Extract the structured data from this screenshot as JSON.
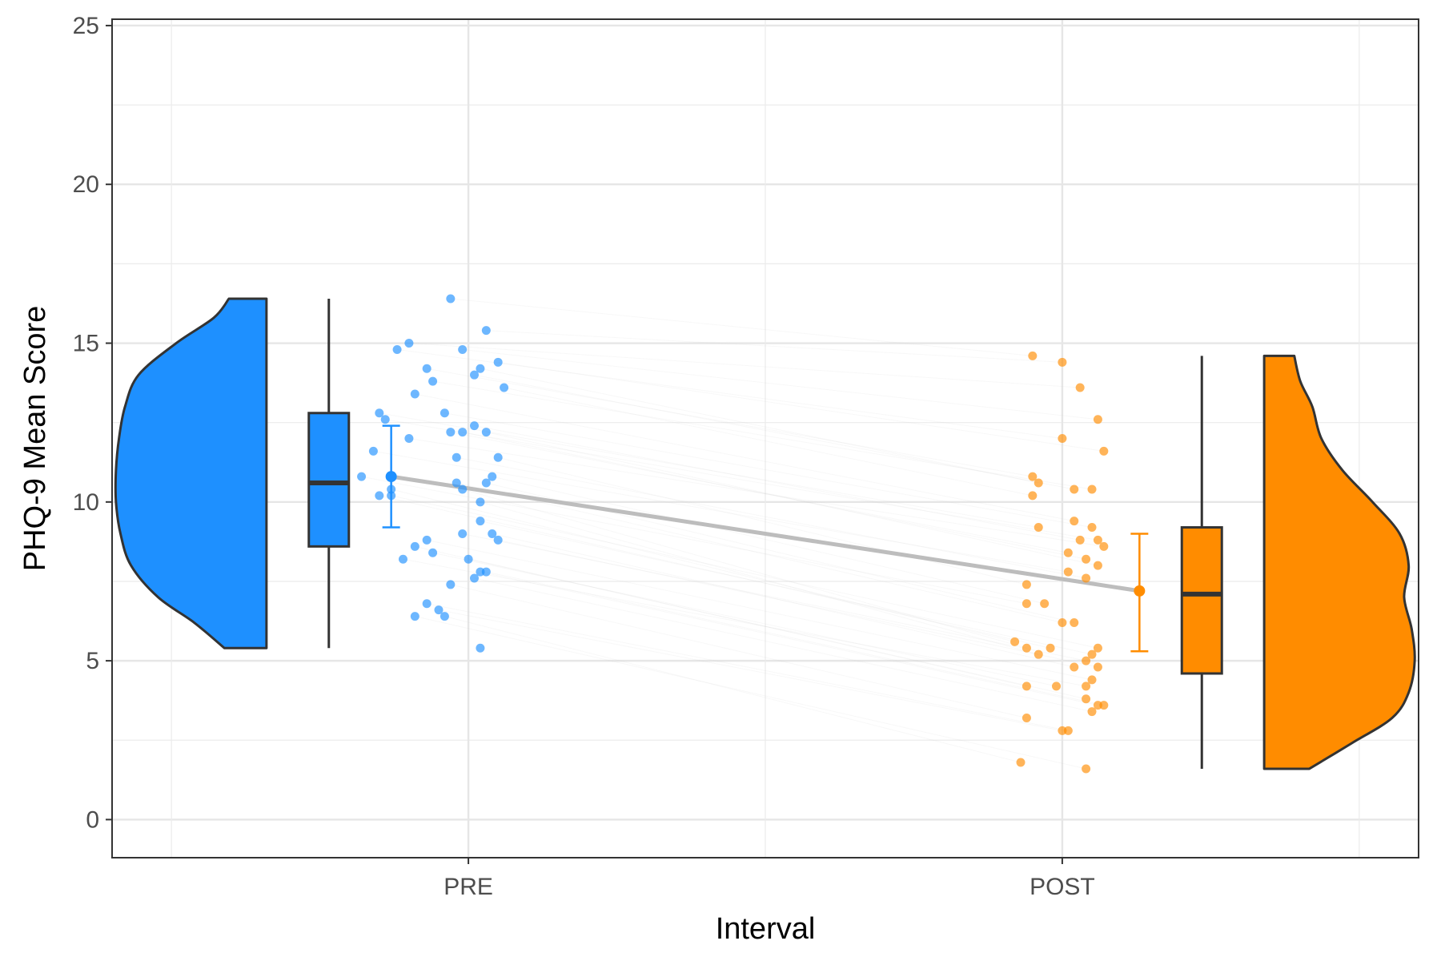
{
  "chart_data": {
    "type": "raincloud",
    "xlabel": "Interval",
    "ylabel": "PHQ-9 Mean Score",
    "ylim": [
      -1.2,
      25.2
    ],
    "y_ticks": [
      0,
      5,
      10,
      15,
      20,
      25
    ],
    "categories": [
      "PRE",
      "POST"
    ],
    "grid": true,
    "legend": "none",
    "mean_line_color": "#bdbdbd",
    "series": [
      {
        "category": "PRE",
        "color": "#1e90ff",
        "box": {
          "min": 5.4,
          "q1": 8.6,
          "median": 10.6,
          "q3": 12.8,
          "max": 16.4
        },
        "mean": 10.8,
        "ci": [
          9.2,
          12.4
        ],
        "density": [
          [
            5.4,
            0.28
          ],
          [
            6.2,
            0.48
          ],
          [
            7.0,
            0.72
          ],
          [
            8.0,
            0.9
          ],
          [
            9.0,
            0.97
          ],
          [
            10.0,
            1.0
          ],
          [
            11.0,
            1.0
          ],
          [
            12.0,
            0.98
          ],
          [
            13.0,
            0.94
          ],
          [
            14.0,
            0.85
          ],
          [
            15.0,
            0.6
          ],
          [
            15.8,
            0.35
          ],
          [
            16.4,
            0.25
          ]
        ],
        "points": [
          [
            0.97,
            16.4
          ],
          [
            1.03,
            15.4
          ],
          [
            0.9,
            15.0
          ],
          [
            0.88,
            14.8
          ],
          [
            0.99,
            14.8
          ],
          [
            1.05,
            14.4
          ],
          [
            0.93,
            14.2
          ],
          [
            1.02,
            14.2
          ],
          [
            1.01,
            14.0
          ],
          [
            0.94,
            13.8
          ],
          [
            1.06,
            13.6
          ],
          [
            0.91,
            13.4
          ],
          [
            0.85,
            12.8
          ],
          [
            0.96,
            12.8
          ],
          [
            0.86,
            12.6
          ],
          [
            1.01,
            12.4
          ],
          [
            0.9,
            12.0
          ],
          [
            0.97,
            12.2
          ],
          [
            0.99,
            12.2
          ],
          [
            1.03,
            12.2
          ],
          [
            0.84,
            11.6
          ],
          [
            0.98,
            11.4
          ],
          [
            1.05,
            11.4
          ],
          [
            0.82,
            10.8
          ],
          [
            1.04,
            10.8
          ],
          [
            0.98,
            10.6
          ],
          [
            1.03,
            10.6
          ],
          [
            0.87,
            10.4
          ],
          [
            0.99,
            10.4
          ],
          [
            0.85,
            10.2
          ],
          [
            0.87,
            10.2
          ],
          [
            1.02,
            10.0
          ],
          [
            1.02,
            9.4
          ],
          [
            0.99,
            9.0
          ],
          [
            1.04,
            9.0
          ],
          [
            1.05,
            8.8
          ],
          [
            0.93,
            8.8
          ],
          [
            0.91,
            8.6
          ],
          [
            0.94,
            8.4
          ],
          [
            0.89,
            8.2
          ],
          [
            1.0,
            8.2
          ],
          [
            1.02,
            7.8
          ],
          [
            1.03,
            7.8
          ],
          [
            1.01,
            7.6
          ],
          [
            0.97,
            7.4
          ],
          [
            0.93,
            6.8
          ],
          [
            0.95,
            6.6
          ],
          [
            0.96,
            6.4
          ],
          [
            0.91,
            6.4
          ],
          [
            1.02,
            5.4
          ]
        ]
      },
      {
        "category": "POST",
        "color": "#ff8c00",
        "box": {
          "min": 1.6,
          "q1": 4.6,
          "median": 7.1,
          "q3": 9.2,
          "max": 14.6
        },
        "mean": 7.2,
        "ci": [
          5.3,
          9.0
        ],
        "density": [
          [
            1.6,
            0.3
          ],
          [
            2.4,
            0.58
          ],
          [
            3.2,
            0.85
          ],
          [
            4.0,
            0.96
          ],
          [
            5.0,
            1.0
          ],
          [
            6.0,
            0.98
          ],
          [
            7.0,
            0.93
          ],
          [
            8.0,
            0.96
          ],
          [
            9.0,
            0.9
          ],
          [
            10.0,
            0.72
          ],
          [
            11.0,
            0.52
          ],
          [
            12.0,
            0.38
          ],
          [
            13.0,
            0.32
          ],
          [
            13.8,
            0.24
          ],
          [
            14.6,
            0.2
          ]
        ],
        "points": [
          [
            1.95,
            14.6
          ],
          [
            2.0,
            14.4
          ],
          [
            2.03,
            13.6
          ],
          [
            2.0,
            12.0
          ],
          [
            2.06,
            12.6
          ],
          [
            2.07,
            11.6
          ],
          [
            1.95,
            10.8
          ],
          [
            1.96,
            10.6
          ],
          [
            2.02,
            10.4
          ],
          [
            2.05,
            10.4
          ],
          [
            1.95,
            10.2
          ],
          [
            2.02,
            9.4
          ],
          [
            1.96,
            9.2
          ],
          [
            2.05,
            9.2
          ],
          [
            2.06,
            8.8
          ],
          [
            2.03,
            8.8
          ],
          [
            2.07,
            8.6
          ],
          [
            2.01,
            8.4
          ],
          [
            2.04,
            8.2
          ],
          [
            2.06,
            8.0
          ],
          [
            2.01,
            7.8
          ],
          [
            2.04,
            7.6
          ],
          [
            1.94,
            7.4
          ],
          [
            1.94,
            6.8
          ],
          [
            1.97,
            6.8
          ],
          [
            2.0,
            6.2
          ],
          [
            2.02,
            6.2
          ],
          [
            1.92,
            5.6
          ],
          [
            1.94,
            5.4
          ],
          [
            1.98,
            5.4
          ],
          [
            2.06,
            5.4
          ],
          [
            1.96,
            5.2
          ],
          [
            2.05,
            5.2
          ],
          [
            2.04,
            5.0
          ],
          [
            2.02,
            4.8
          ],
          [
            2.06,
            4.8
          ],
          [
            2.05,
            4.4
          ],
          [
            1.94,
            4.2
          ],
          [
            1.99,
            4.2
          ],
          [
            2.04,
            4.2
          ],
          [
            2.04,
            3.8
          ],
          [
            2.06,
            3.6
          ],
          [
            2.07,
            3.6
          ],
          [
            2.05,
            3.4
          ],
          [
            1.94,
            3.2
          ],
          [
            2.01,
            2.8
          ],
          [
            2.0,
            2.8
          ],
          [
            1.93,
            1.8
          ],
          [
            2.04,
            1.6
          ]
        ]
      }
    ]
  }
}
